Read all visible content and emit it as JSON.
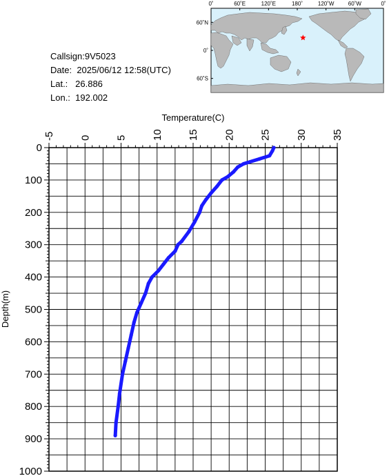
{
  "info": {
    "callsign_label": "Callsign:",
    "callsign": "9V5023",
    "date_label": "Date:",
    "date": "2025/06/12 12:58(UTC)",
    "lat_label": "Lat.:",
    "lat": "26.886",
    "lon_label": "Lon.:",
    "lon": "192.002"
  },
  "map": {
    "lon_labels": [
      "0˚",
      "60˚E",
      "120˚E",
      "180˚",
      "120˚W",
      "60˚W",
      "0˚"
    ],
    "lat_labels": [
      "60˚N",
      "0˚",
      "60˚S"
    ],
    "marker_lat": 26.886,
    "marker_lon": 192.002,
    "ocean_color": "#d9f1fb",
    "land_color": "#b9b9b9",
    "marker_color": "#ff0000"
  },
  "chart_data": {
    "type": "line",
    "title": "",
    "xlabel": "Temperature(C)",
    "ylabel": "Depth(m)",
    "xlim": [
      -5,
      35
    ],
    "ylim": [
      0,
      1000
    ],
    "x_ticks": [
      "-5",
      "0",
      "5",
      "10",
      "15",
      "20",
      "25",
      "30",
      "35"
    ],
    "y_ticks": [
      "0",
      "100",
      "200",
      "300",
      "400",
      "500",
      "600",
      "700",
      "800",
      "900",
      "1000"
    ],
    "grid": true,
    "series_color": "#1a1aff",
    "series": [
      {
        "x": [
          26.2,
          26.0,
          25.6,
          24.2,
          22.0,
          21.2,
          20.6,
          19.8,
          19.0,
          18.3,
          17.5,
          16.8,
          16.2,
          15.9,
          15.2,
          14.4,
          13.4,
          12.9,
          12.5,
          11.6,
          10.9,
          10.2,
          9.3,
          8.8,
          8.4,
          7.8,
          7.2,
          6.8,
          6.4,
          6.0,
          5.6,
          5.2,
          4.8,
          4.6,
          4.3,
          4.2
        ],
        "y": [
          0,
          10,
          25,
          35,
          50,
          60,
          75,
          90,
          100,
          120,
          140,
          160,
          180,
          200,
          230,
          260,
          290,
          300,
          320,
          340,
          360,
          380,
          400,
          420,
          450,
          480,
          510,
          540,
          580,
          620,
          660,
          700,
          760,
          800,
          850,
          890
        ]
      }
    ]
  }
}
